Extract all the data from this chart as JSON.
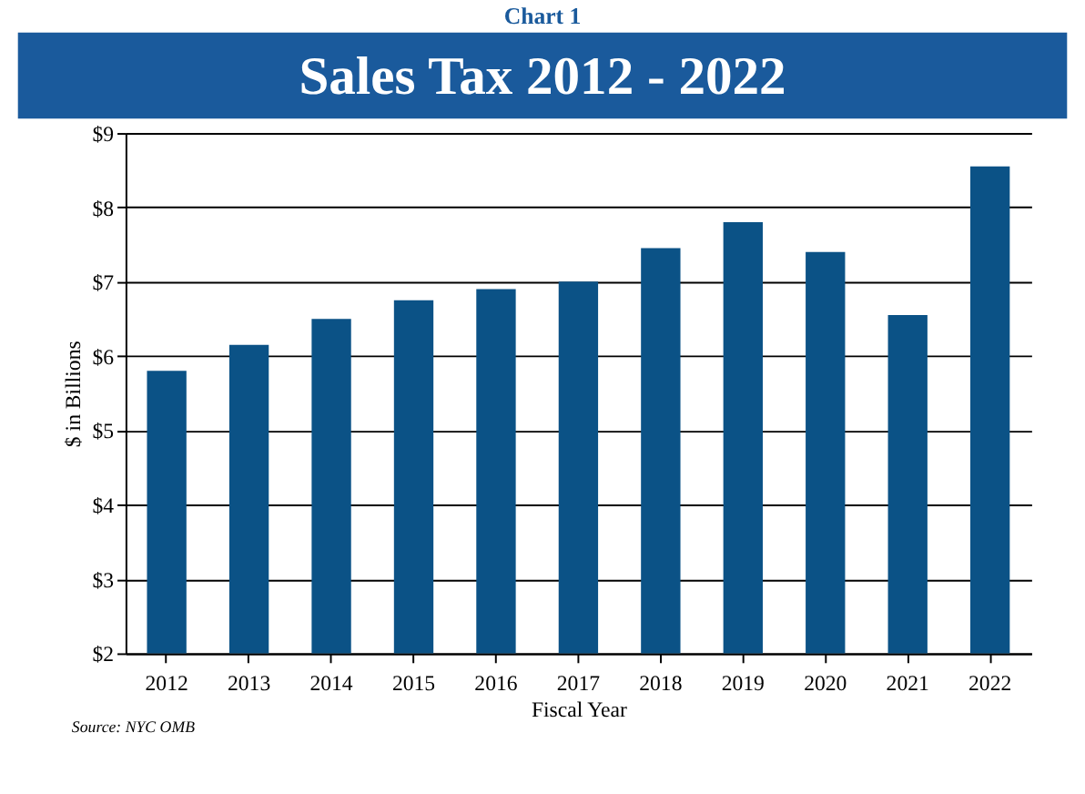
{
  "chart_data": {
    "type": "bar",
    "title": "Sales Tax 2012 - 2022",
    "categories": [
      "2012",
      "2013",
      "2014",
      "2015",
      "2016",
      "2017",
      "2018",
      "2019",
      "2020",
      "2021",
      "2022"
    ],
    "values": [
      5.8,
      6.15,
      6.5,
      6.75,
      6.9,
      7.0,
      7.45,
      7.8,
      7.4,
      6.55,
      8.55
    ],
    "color": "#0b5286",
    "xlabel": "Fiscal Year",
    "ylabel": "$ in Billions",
    "ylim": [
      2,
      9
    ],
    "yticks": [
      {
        "value": 2,
        "label": "$2"
      },
      {
        "value": 3,
        "label": "$3"
      },
      {
        "value": 4,
        "label": "$4"
      },
      {
        "value": 5,
        "label": "$5"
      },
      {
        "value": 6,
        "label": "$6"
      },
      {
        "value": 7,
        "label": "$7"
      },
      {
        "value": 8,
        "label": "$8"
      },
      {
        "value": 9,
        "label": "$9"
      }
    ],
    "grid": "y",
    "annotations": [
      "Chart 1",
      "Source: NYC OMB"
    ]
  }
}
